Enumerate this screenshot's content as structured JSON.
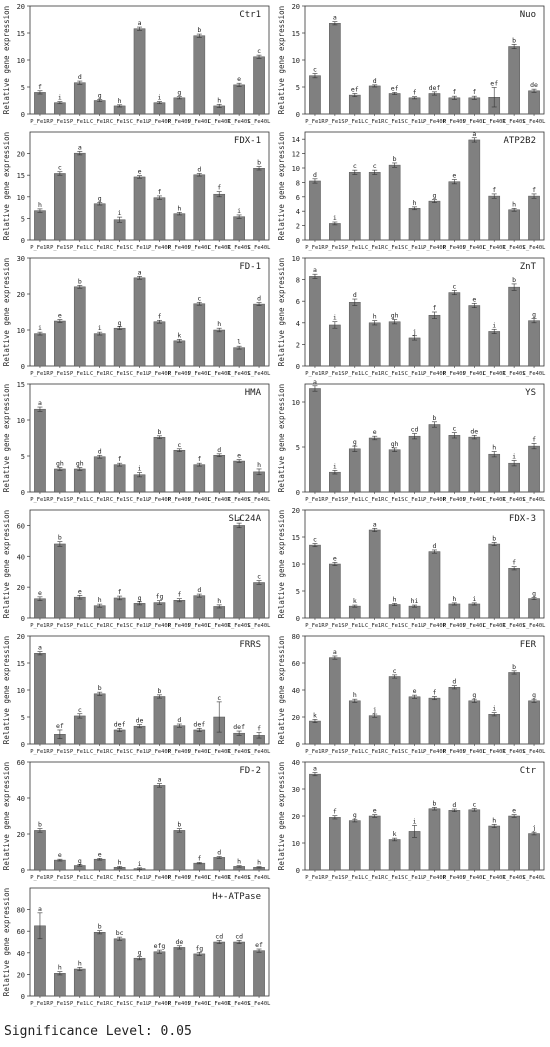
{
  "footer": {
    "significance": "Significance Level: 0.05"
  },
  "colors": {
    "bar": "#808080",
    "bar_edge": "#555555",
    "axis": "#333333",
    "text": "#222222"
  },
  "ylabel": "Relative gene expression",
  "chart_data": [
    {
      "type": "bar",
      "title": "Ctr1",
      "categories": [
        "P_Fe1R",
        "P_Fe1S",
        "P_Fe1L",
        "C_Fe1R",
        "C_Fe1S",
        "C_Fe1L",
        "P_Fe40R",
        "P_Fe40S",
        "P_Fe40L",
        "C_Fe40R",
        "C_Fe40S",
        "C_Fe40L"
      ],
      "values": [
        4,
        2.1,
        5.8,
        2.5,
        1.5,
        15.8,
        2.1,
        3,
        14.5,
        1.5,
        5.4,
        10.6
      ],
      "errors": [
        0.3,
        0.2,
        0.3,
        0.2,
        0.2,
        0.3,
        0.2,
        0.2,
        0.3,
        0.3,
        0.3,
        0.3
      ],
      "labels": [
        "f",
        "i",
        "d",
        "g",
        "h",
        "a",
        "i",
        "g",
        "b",
        "h",
        "e",
        "c"
      ],
      "ylim": [
        0,
        20
      ],
      "yticks": [
        0,
        5,
        10,
        15,
        20
      ]
    },
    {
      "type": "bar",
      "title": "Nuo",
      "categories": [
        "P_Fe1R",
        "P_Fe1S",
        "P_Fe1L",
        "C_Fe1R",
        "C_Fe1S",
        "C_Fe1L",
        "P_Fe40R",
        "P_Fe40S",
        "P_Fe40L",
        "C_Fe40R",
        "C_Fe40S",
        "C_Fe40L"
      ],
      "values": [
        7.1,
        16.8,
        3.5,
        5.2,
        3.8,
        3,
        3.8,
        3,
        3,
        3.1,
        12.5,
        4.3
      ],
      "errors": [
        0.4,
        0.3,
        0.3,
        0.2,
        0.2,
        0.2,
        0.3,
        0.3,
        0.3,
        1.8,
        0.4,
        0.3
      ],
      "labels": [
        "c",
        "a",
        "ef",
        "d",
        "ef",
        "f",
        "def",
        "f",
        "f",
        "ef",
        "b",
        "de"
      ],
      "ylim": [
        0,
        20
      ],
      "yticks": [
        0,
        5,
        10,
        15,
        20
      ]
    },
    {
      "type": "bar",
      "title": "FDX-1",
      "categories": [
        "P_Fe1R",
        "P_Fe1S",
        "P_Fe1L",
        "C_Fe1R",
        "C_Fe1S",
        "C_Fe1L",
        "P_Fe40R",
        "P_Fe40S",
        "P_Fe40L",
        "C_Fe40R",
        "C_Fe40S",
        "C_Fe40L"
      ],
      "values": [
        6.8,
        15.4,
        20.1,
        8.4,
        4.7,
        14.6,
        9.8,
        6.1,
        15.1,
        10.6,
        5.4,
        16.6
      ],
      "errors": [
        0.4,
        0.4,
        0.4,
        0.3,
        0.6,
        0.3,
        0.4,
        0.3,
        0.3,
        0.6,
        0.4,
        0.4
      ],
      "labels": [
        "h",
        "c",
        "a",
        "g",
        "i",
        "e",
        "f",
        "h",
        "d",
        "f",
        "i",
        "b"
      ],
      "ylim": [
        0,
        25
      ],
      "yticks": [
        0,
        5,
        10,
        15,
        20
      ]
    },
    {
      "type": "bar",
      "title": "ATP2B2",
      "categories": [
        "P_Fe1R",
        "P_Fe1S",
        "P_Fe1L",
        "C_Fe1R",
        "C_Fe1S",
        "C_Fe1L",
        "P_Fe40R",
        "P_Fe40S",
        "P_Fe40L",
        "C_Fe40R",
        "C_Fe40S",
        "C_Fe40L"
      ],
      "values": [
        8.2,
        2.3,
        9.4,
        9.4,
        10.4,
        4.4,
        5.4,
        8.1,
        13.9,
        6.1,
        4.2,
        6.1
      ],
      "errors": [
        0.3,
        0.2,
        0.3,
        0.3,
        0.3,
        0.2,
        0.2,
        0.3,
        0.3,
        0.3,
        0.2,
        0.3
      ],
      "labels": [
        "d",
        "i",
        "c",
        "c",
        "b",
        "h",
        "g",
        "e",
        "a",
        "f",
        "h",
        "f"
      ],
      "ylim": [
        0,
        15
      ],
      "yticks": [
        0,
        2,
        4,
        6,
        8,
        10,
        12,
        14
      ]
    },
    {
      "type": "bar",
      "title": "FD-1",
      "categories": [
        "P_Fe1R",
        "P_Fe1S",
        "P_Fe1L",
        "C_Fe1R",
        "C_Fe1S",
        "C_Fe1L",
        "P_Fe40R",
        "P_Fe40S",
        "P_Fe40L",
        "C_Fe40R",
        "C_Fe40S",
        "C_Fe40L"
      ],
      "values": [
        9,
        12.5,
        22,
        9,
        10.5,
        24.5,
        12.3,
        7,
        17.3,
        10,
        5.1,
        17.2
      ],
      "errors": [
        0.4,
        0.4,
        0.4,
        0.4,
        0.4,
        0.4,
        0.4,
        0.4,
        0.4,
        0.5,
        0.4,
        0.4
      ],
      "labels": [
        "i",
        "e",
        "b",
        "i",
        "g",
        "a",
        "f",
        "k",
        "c",
        "h",
        "l",
        "d"
      ],
      "ylim": [
        0,
        30
      ],
      "yticks": [
        0,
        10,
        20,
        30
      ]
    },
    {
      "type": "bar",
      "title": "ZnT",
      "categories": [
        "P_Fe1R",
        "P_Fe1S",
        "P_Fe1L",
        "C_Fe1R",
        "C_Fe1S",
        "C_Fe1L",
        "P_Fe40R",
        "P_Fe40S",
        "P_Fe40L",
        "C_Fe40R",
        "C_Fe40S",
        "C_Fe40L"
      ],
      "values": [
        8.3,
        3.8,
        5.9,
        4,
        4.1,
        2.6,
        4.7,
        6.8,
        5.6,
        3.2,
        7.3,
        4.2
      ],
      "errors": [
        0.2,
        0.3,
        0.3,
        0.2,
        0.2,
        0.2,
        0.3,
        0.2,
        0.2,
        0.2,
        0.3,
        0.2
      ],
      "labels": [
        "a",
        "i",
        "d",
        "h",
        "gh",
        "j",
        "f",
        "c",
        "e",
        "i",
        "b",
        "g"
      ],
      "ylim": [
        0,
        10
      ],
      "yticks": [
        0,
        2,
        4,
        6,
        8,
        10
      ]
    },
    {
      "type": "bar",
      "title": "HMA",
      "categories": [
        "P_Fe1R",
        "P_Fe1S",
        "P_Fe1L",
        "C_Fe1R",
        "C_Fe1S",
        "C_Fe1L",
        "P_Fe40R",
        "P_Fe40S",
        "P_Fe40L",
        "C_Fe40R",
        "C_Fe40S",
        "C_Fe40L"
      ],
      "values": [
        11.5,
        3.2,
        3.2,
        4.9,
        3.8,
        2.4,
        7.6,
        5.8,
        3.8,
        5.1,
        4.3,
        2.8
      ],
      "errors": [
        0.3,
        0.2,
        0.2,
        0.2,
        0.2,
        0.3,
        0.2,
        0.2,
        0.2,
        0.2,
        0.2,
        0.4
      ],
      "labels": [
        "a",
        "gh",
        "gh",
        "d",
        "f",
        "i",
        "b",
        "c",
        "f",
        "d",
        "e",
        "h"
      ],
      "ylim": [
        0,
        15
      ],
      "yticks": [
        0,
        5,
        10,
        15
      ]
    },
    {
      "type": "bar",
      "title": "YS",
      "categories": [
        "P_Fe1R",
        "P_Fe1S",
        "P_Fe1L",
        "C_Fe1R",
        "C_Fe1S",
        "C_Fe1L",
        "P_Fe40R",
        "P_Fe40S",
        "P_Fe40L",
        "C_Fe40R",
        "C_Fe40S",
        "C_Fe40L"
      ],
      "values": [
        11.5,
        2.2,
        4.8,
        6,
        4.7,
        6.2,
        7.5,
        6.3,
        6.1,
        4.2,
        3.2,
        5.1
      ],
      "errors": [
        0.3,
        0.2,
        0.3,
        0.2,
        0.2,
        0.3,
        0.3,
        0.3,
        0.2,
        0.3,
        0.3,
        0.3
      ],
      "labels": [
        "a",
        "i",
        "g",
        "e",
        "gh",
        "cd",
        "b",
        "c",
        "de",
        "h",
        "i",
        "f"
      ],
      "ylim": [
        0,
        12
      ],
      "yticks": [
        0,
        5,
        10
      ]
    },
    {
      "type": "bar",
      "title": "SLC24A",
      "categories": [
        "P_Fe1R",
        "P_Fe1S",
        "P_Fe1L",
        "C_Fe1R",
        "C_Fe1S",
        "C_Fe1L",
        "P_Fe40R",
        "P_Fe40S",
        "P_Fe40L",
        "C_Fe40R",
        "C_Fe40S",
        "C_Fe40L"
      ],
      "values": [
        12.5,
        48,
        13.5,
        8,
        13,
        9.5,
        10,
        11.5,
        14.5,
        7.5,
        60,
        23
      ],
      "errors": [
        1.2,
        1.5,
        1.2,
        1,
        1.2,
        1,
        1.2,
        1,
        1,
        1,
        1.5,
        1.2
      ],
      "labels": [
        "e",
        "b",
        "e",
        "h",
        "f",
        "g",
        "fg",
        "f",
        "d",
        "h",
        "a",
        "c"
      ],
      "ylim": [
        0,
        70
      ],
      "yticks": [
        0,
        20,
        40,
        60
      ]
    },
    {
      "type": "bar",
      "title": "FDX-3",
      "categories": [
        "P_Fe1R",
        "P_Fe1S",
        "P_Fe1L",
        "C_Fe1R",
        "C_Fe1S",
        "C_Fe1L",
        "P_Fe40R",
        "P_Fe40S",
        "P_Fe40L",
        "C_Fe40R",
        "C_Fe40S",
        "C_Fe40L"
      ],
      "values": [
        13.5,
        10,
        2.2,
        16.3,
        2.5,
        2.2,
        12.3,
        2.6,
        2.6,
        13.7,
        9.2,
        3.6
      ],
      "errors": [
        0.3,
        0.3,
        0.2,
        0.3,
        0.2,
        0.2,
        0.3,
        0.2,
        0.2,
        0.3,
        0.3,
        0.2
      ],
      "labels": [
        "c",
        "e",
        "k",
        "a",
        "h",
        "hi",
        "d",
        "h",
        "i",
        "b",
        "f",
        "g"
      ],
      "ylim": [
        0,
        20
      ],
      "yticks": [
        0,
        5,
        10,
        15,
        20
      ]
    },
    {
      "type": "bar",
      "title": "FRRS",
      "categories": [
        "P_Fe1R",
        "P_Fe1S",
        "P_Fe1L",
        "C_Fe1R",
        "C_Fe1S",
        "C_Fe1L",
        "P_Fe40R",
        "P_Fe40S",
        "P_Fe40L",
        "C_Fe40R",
        "C_Fe40S",
        "C_Fe40L"
      ],
      "values": [
        16.8,
        1.8,
        5.2,
        9.3,
        2.6,
        3.3,
        8.8,
        3.4,
        2.6,
        5,
        2,
        1.6
      ],
      "errors": [
        0.3,
        0.8,
        0.4,
        0.3,
        0.3,
        0.3,
        0.3,
        0.3,
        0.3,
        2.8,
        0.4,
        0.5
      ],
      "labels": [
        "a",
        "ef",
        "c",
        "b",
        "def",
        "de",
        "b",
        "d",
        "def",
        "c",
        "def",
        "f"
      ],
      "ylim": [
        0,
        20
      ],
      "yticks": [
        0,
        5,
        10,
        15,
        20
      ]
    },
    {
      "type": "bar",
      "title": "FER",
      "categories": [
        "P_Fe1R",
        "P_Fe1S",
        "P_Fe1L",
        "C_Fe1R",
        "C_Fe1S",
        "C_Fe1L",
        "P_Fe40R",
        "P_Fe40S",
        "P_Fe40L",
        "C_Fe40R",
        "C_Fe40S",
        "C_Fe40L"
      ],
      "values": [
        17,
        64,
        32,
        21,
        50,
        35,
        34,
        42,
        32,
        22,
        53,
        32
      ],
      "errors": [
        1.2,
        1.2,
        1.2,
        1.2,
        1.2,
        1.2,
        1.2,
        1.2,
        1.2,
        1.2,
        1.2,
        1.2
      ],
      "labels": [
        "k",
        "a",
        "h",
        "j",
        "c",
        "e",
        "f",
        "d",
        "g",
        "i",
        "b",
        "g"
      ],
      "ylim": [
        0,
        80
      ],
      "yticks": [
        0,
        20,
        40,
        60,
        80
      ]
    },
    {
      "type": "bar",
      "title": "FD-2",
      "categories": [
        "P_Fe1R",
        "P_Fe1S",
        "P_Fe1L",
        "C_Fe1R",
        "C_Fe1S",
        "C_Fe1L",
        "P_Fe40R",
        "P_Fe40S",
        "P_Fe40L",
        "C_Fe40R",
        "C_Fe40S",
        "C_Fe40L"
      ],
      "values": [
        22,
        5.5,
        2.5,
        6,
        1.5,
        0.8,
        47,
        22,
        3.8,
        7,
        2,
        1.5
      ],
      "errors": [
        1,
        0.5,
        0.4,
        0.5,
        0.5,
        0.4,
        1,
        1,
        0.4,
        0.5,
        0.4,
        0.4
      ],
      "labels": [
        "b",
        "e",
        "g",
        "e",
        "h",
        "i",
        "a",
        "b",
        "f",
        "d",
        "h",
        "h"
      ],
      "ylim": [
        0,
        60
      ],
      "yticks": [
        0,
        20,
        40,
        60
      ]
    },
    {
      "type": "bar",
      "title": "Ctr",
      "categories": [
        "P_Fe1R",
        "P_Fe1S",
        "P_Fe1L",
        "C_Fe1R",
        "C_Fe1S",
        "C_Fe1L",
        "P_Fe40R",
        "P_Fe40S",
        "P_Fe40L",
        "C_Fe40R",
        "C_Fe40S",
        "C_Fe40L"
      ],
      "values": [
        35.5,
        19.5,
        18.3,
        20,
        11.3,
        14.3,
        22.7,
        22.1,
        22.3,
        16.3,
        20,
        13.5
      ],
      "errors": [
        0.6,
        0.6,
        0.5,
        0.5,
        0.5,
        2.2,
        0.5,
        0.5,
        0.5,
        0.6,
        0.5,
        0.5
      ],
      "labels": [
        "a",
        "f",
        "g",
        "e",
        "k",
        "i",
        "b",
        "d",
        "c",
        "h",
        "e",
        "j"
      ],
      "ylim": [
        0,
        40
      ],
      "yticks": [
        0,
        10,
        20,
        30,
        40
      ]
    },
    {
      "type": "bar",
      "title": "H+-ATPase",
      "categories": [
        "P_Fe1R",
        "P_Fe1S",
        "P_Fe1L",
        "C_Fe1R",
        "C_Fe1S",
        "C_Fe1L",
        "P_Fe40R",
        "P_Fe40S",
        "P_Fe40L",
        "C_Fe40R",
        "C_Fe40S",
        "C_Fe40L"
      ],
      "values": [
        65,
        21,
        25,
        59,
        53,
        35,
        41,
        45,
        39,
        50,
        50,
        42
      ],
      "errors": [
        12,
        1.5,
        1.5,
        1.5,
        1.5,
        1.5,
        1.5,
        1.5,
        1.5,
        1.5,
        1.5,
        1.5
      ],
      "labels": [
        "a",
        "h",
        "h",
        "b",
        "bc",
        "g",
        "efg",
        "de",
        "fg",
        "cd",
        "cd",
        "ef"
      ],
      "ylim": [
        0,
        100
      ],
      "yticks": [
        0,
        20,
        40,
        60,
        80
      ]
    }
  ]
}
